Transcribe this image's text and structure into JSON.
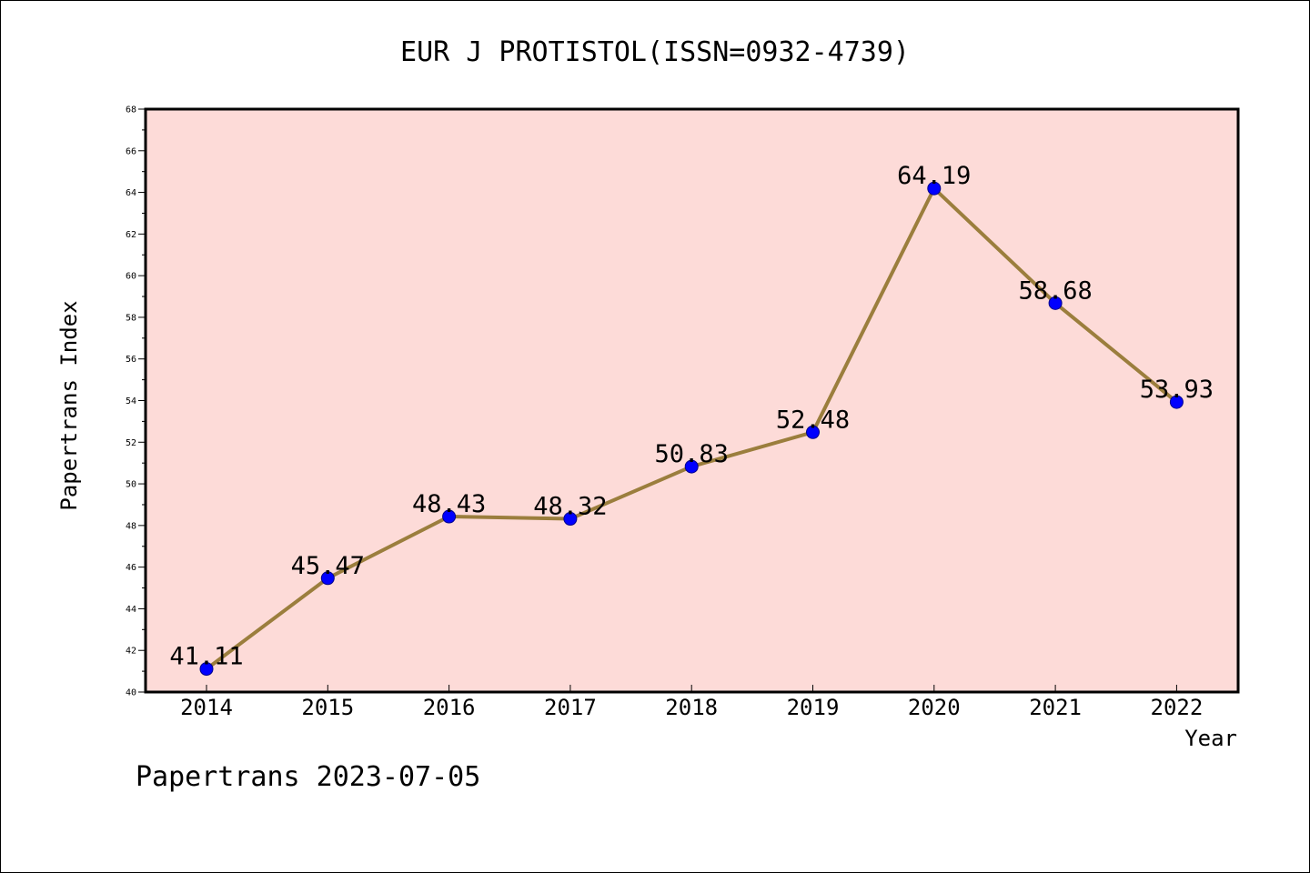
{
  "chart_data": {
    "type": "line",
    "title": "EUR J PROTISTOL(ISSN=0932-4739)",
    "xlabel": "Year",
    "ylabel": "Papertrans Index",
    "categories": [
      "2014",
      "2015",
      "2016",
      "2017",
      "2018",
      "2019",
      "2020",
      "2021",
      "2022"
    ],
    "series": [
      {
        "values": [
          41.11,
          45.47,
          48.43,
          48.32,
          50.83,
          52.48,
          64.19,
          58.68,
          53.93
        ],
        "labels": [
          "41.11",
          "45.47",
          "48.43",
          "48.32",
          "50.83",
          "52.48",
          "64.19",
          "58.68",
          "53.93"
        ]
      }
    ],
    "ylim": [
      40,
      68
    ],
    "yticks": [
      "40",
      "42",
      "44",
      "46",
      "48",
      "50",
      "52",
      "54",
      "56",
      "58",
      "60",
      "62",
      "64",
      "66",
      "68"
    ],
    "grid": false,
    "colors": {
      "plot_background": "#fddbd8",
      "line": "#9b7e3d",
      "marker": "#0000ff"
    }
  },
  "footer": "Papertrans 2023-07-05"
}
